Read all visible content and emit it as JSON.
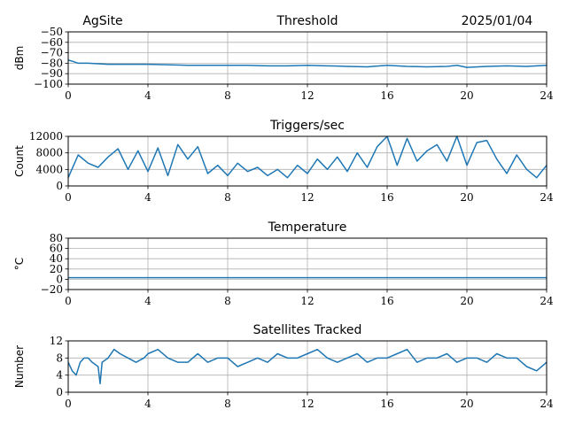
{
  "header": {
    "site": "AgSite",
    "date": "2025/01/04"
  },
  "chart_data": [
    {
      "type": "line",
      "title": "Threshold",
      "ylabel": "dBm",
      "xlim": [
        0,
        24
      ],
      "ylim": [
        -100,
        -50
      ],
      "xticks": [
        0,
        4,
        8,
        12,
        16,
        20,
        24
      ],
      "yticks": [
        -100,
        -90,
        -80,
        -70,
        -60,
        -50
      ],
      "ytick_labels": [
        "−100",
        "−90",
        "−80",
        "−70",
        "−60",
        "−50"
      ],
      "grid": true,
      "color": "#1f77b4",
      "x": [
        0,
        0.2,
        0.5,
        1,
        2,
        3,
        4,
        5,
        6,
        7,
        8,
        9,
        10,
        11,
        12,
        13,
        14,
        15,
        16,
        17,
        18,
        19,
        19.5,
        20,
        21,
        22,
        23,
        24
      ],
      "y": [
        -77,
        -78,
        -80,
        -80,
        -81,
        -81,
        -81,
        -81.5,
        -82,
        -82,
        -82,
        -82,
        -82.5,
        -82.5,
        -82,
        -82.5,
        -83,
        -83.5,
        -82,
        -83,
        -83.5,
        -83,
        -82,
        -84,
        -83,
        -82.5,
        -83,
        -82
      ]
    },
    {
      "type": "line",
      "title": "Triggers/sec",
      "ylabel": "Count",
      "xlim": [
        0,
        24
      ],
      "ylim": [
        0,
        12000
      ],
      "xticks": [
        0,
        4,
        8,
        12,
        16,
        20,
        24
      ],
      "yticks": [
        0,
        4000,
        8000,
        12000
      ],
      "ytick_labels": [
        "0",
        "4000",
        "8000",
        "12000"
      ],
      "grid": true,
      "color": "#1f77b4",
      "x": [
        0,
        0.5,
        1,
        1.5,
        2,
        2.5,
        3,
        3.5,
        4,
        4.5,
        5,
        5.5,
        6,
        6.5,
        7,
        7.5,
        8,
        8.5,
        9,
        9.5,
        10,
        10.5,
        11,
        11.5,
        12,
        12.5,
        13,
        13.5,
        14,
        14.5,
        15,
        15.5,
        16,
        16.5,
        17,
        17.5,
        18,
        18.5,
        19,
        19.5,
        20,
        20.5,
        21,
        21.5,
        22,
        22.5,
        23,
        23.5,
        24
      ],
      "y": [
        2000,
        7500,
        5500,
        4500,
        7000,
        9000,
        4000,
        8500,
        3500,
        9200,
        2500,
        10000,
        6500,
        9500,
        3000,
        5000,
        2500,
        5500,
        3500,
        4500,
        2500,
        4000,
        2000,
        5000,
        3000,
        6500,
        4000,
        7000,
        3500,
        8000,
        4500,
        9500,
        12000,
        5000,
        11500,
        6000,
        8500,
        10000,
        6000,
        12000,
        5000,
        10500,
        11000,
        6500,
        3000,
        7500,
        4000,
        2000,
        5000
      ]
    },
    {
      "type": "line",
      "title": "Temperature",
      "ylabel": "°C",
      "xlim": [
        0,
        24
      ],
      "ylim": [
        -20,
        80
      ],
      "xticks": [
        0,
        4,
        8,
        12,
        16,
        20,
        24
      ],
      "yticks": [
        -20,
        0,
        20,
        40,
        60,
        80
      ],
      "ytick_labels": [
        "−20",
        "0",
        "20",
        "40",
        "60",
        "80"
      ],
      "grid": true,
      "color": "#1f77b4",
      "x": [
        0,
        24
      ],
      "y": [
        3,
        3
      ]
    },
    {
      "type": "line",
      "title": "Satellites Tracked",
      "ylabel": "Number",
      "xlim": [
        0,
        24
      ],
      "ylim": [
        0,
        12
      ],
      "xticks": [
        0,
        4,
        8,
        12,
        16,
        20,
        24
      ],
      "yticks": [
        0,
        4,
        8,
        12
      ],
      "ytick_labels": [
        "0",
        "4",
        "8",
        "12"
      ],
      "grid": true,
      "color": "#1f77b4",
      "x": [
        0,
        0.2,
        0.4,
        0.6,
        0.8,
        1.0,
        1.2,
        1.5,
        1.6,
        1.7,
        2.0,
        2.3,
        2.6,
        3.0,
        3.4,
        3.8,
        4.0,
        4.5,
        5.0,
        5.5,
        6.0,
        6.5,
        7.0,
        7.5,
        8.0,
        8.5,
        9.0,
        9.5,
        10.0,
        10.5,
        11.0,
        11.5,
        12.0,
        12.5,
        13.0,
        13.5,
        14.0,
        14.5,
        15.0,
        15.5,
        16.0,
        16.5,
        17.0,
        17.5,
        18.0,
        18.5,
        19.0,
        19.5,
        20.0,
        20.5,
        21.0,
        21.5,
        22.0,
        22.5,
        23.0,
        23.5,
        24.0
      ],
      "y": [
        7,
        5,
        4,
        7,
        8,
        8,
        7,
        6,
        2,
        7,
        8,
        10,
        9,
        8,
        7,
        8,
        9,
        10,
        8,
        7,
        7,
        9,
        7,
        8,
        8,
        6,
        7,
        8,
        7,
        9,
        8,
        8,
        9,
        10,
        8,
        7,
        8,
        9,
        7,
        8,
        8,
        9,
        10,
        7,
        8,
        8,
        9,
        7,
        8,
        8,
        7,
        9,
        8,
        8,
        6,
        5,
        7
      ]
    }
  ]
}
